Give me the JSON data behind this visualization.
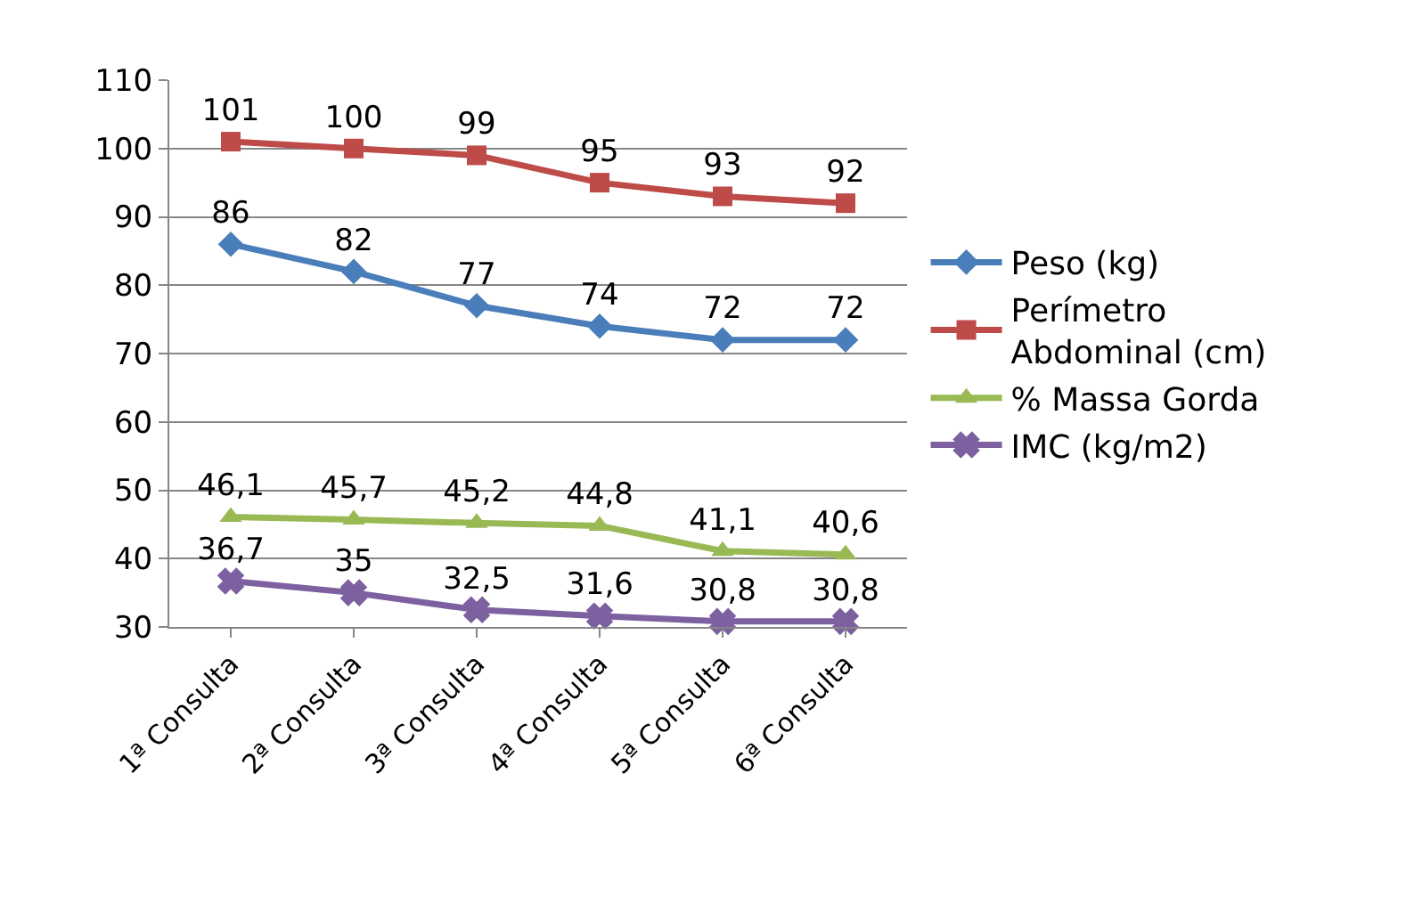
{
  "chart_data": {
    "type": "line",
    "categories": [
      "1ª Consulta",
      "2ª Consulta",
      "3ª Consulta",
      "4ª Consulta",
      "5ª Consulta",
      "6ª Consulta"
    ],
    "series": [
      {
        "name": "Peso (kg)",
        "color": "#4a7ebb",
        "marker": "diamond",
        "values": [
          86,
          82,
          77,
          74,
          72,
          72
        ],
        "value_labels": [
          "86",
          "82",
          "77",
          "74",
          "72",
          "72"
        ]
      },
      {
        "name": "Perímetro Abdominal (cm)",
        "color": "#be4b48",
        "marker": "square",
        "values": [
          101,
          100,
          99,
          95,
          93,
          92
        ],
        "value_labels": [
          "101",
          "100",
          "99",
          "95",
          "93",
          "92"
        ]
      },
      {
        "name": "% Massa Gorda",
        "color": "#98b954",
        "marker": "triangle",
        "values": [
          46.1,
          45.7,
          45.2,
          44.8,
          41.1,
          40.6
        ],
        "value_labels": [
          "46,1",
          "45,7",
          "45,2",
          "44,8",
          "41,1",
          "40,6"
        ]
      },
      {
        "name": "IMC (kg/m2)",
        "color": "#7d60a0",
        "marker": "cross",
        "values": [
          36.7,
          35,
          32.5,
          31.6,
          30.8,
          30.8
        ],
        "value_labels": [
          "36,7",
          "35",
          "32,5",
          "31,6",
          "30,8",
          "30,8"
        ]
      }
    ],
    "ylim": [
      30,
      110
    ],
    "yticks": [
      30,
      40,
      50,
      60,
      70,
      80,
      90,
      100,
      110
    ],
    "grid": "y",
    "legend": "right",
    "line_style": "solid"
  }
}
